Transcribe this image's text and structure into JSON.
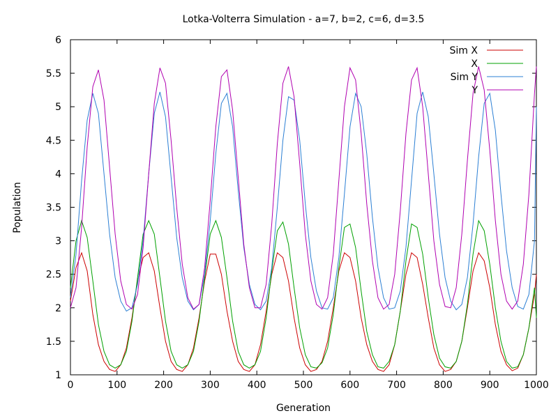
{
  "chart_data": {
    "type": "line",
    "title": "Lotka-Volterra Simulation - a=7, b=2, c=6, d=3.5",
    "xlabel": "Generation",
    "ylabel": "Population",
    "xlim": [
      0,
      1000
    ],
    "ylim": [
      1,
      6
    ],
    "x_ticks": [
      0,
      100,
      200,
      300,
      400,
      500,
      600,
      700,
      800,
      900,
      1000
    ],
    "x_tick_labels": [
      "0",
      "100",
      "200",
      "300",
      "400",
      "500",
      "600",
      "700",
      "800",
      "900",
      "1000"
    ],
    "y_ticks": [
      1,
      1.5,
      2,
      2.5,
      3,
      3.5,
      4,
      4.5,
      5,
      5.5,
      6
    ],
    "y_tick_labels": [
      "1",
      "1.5",
      "2",
      "2.5",
      "3",
      "3.5",
      "4",
      "4.5",
      "5",
      "5.5",
      "6"
    ],
    "grid": false,
    "legend_position": "top-right",
    "series": [
      {
        "name": "Sim X",
        "color": "#cc0000",
        "x": [
          0,
          12,
          24,
          36,
          48,
          60,
          72,
          84,
          96,
          108,
          120,
          132,
          144,
          156,
          168,
          180,
          192,
          204,
          216,
          228,
          240,
          252,
          264,
          276,
          288,
          300,
          312,
          324,
          336,
          348,
          360,
          372,
          384,
          396,
          408,
          420,
          432,
          444,
          456,
          468,
          480,
          492,
          504,
          516,
          528,
          540,
          552,
          564,
          576,
          588,
          600,
          612,
          624,
          636,
          648,
          660,
          672,
          684,
          696,
          708,
          720,
          732,
          744,
          756,
          768,
          780,
          792,
          804,
          816,
          828,
          840,
          852,
          864,
          876,
          888,
          900,
          912,
          924,
          936,
          948,
          960,
          972,
          984,
          996,
          1000
        ],
        "y": [
          2.1,
          2.6,
          2.82,
          2.55,
          1.9,
          1.45,
          1.2,
          1.08,
          1.05,
          1.15,
          1.4,
          1.85,
          2.4,
          2.75,
          2.82,
          2.55,
          2.0,
          1.5,
          1.2,
          1.08,
          1.05,
          1.15,
          1.4,
          1.85,
          2.4,
          2.8,
          2.8,
          2.5,
          1.95,
          1.5,
          1.2,
          1.08,
          1.05,
          1.15,
          1.45,
          1.95,
          2.5,
          2.82,
          2.75,
          2.4,
          1.85,
          1.4,
          1.15,
          1.05,
          1.08,
          1.2,
          1.5,
          2.0,
          2.55,
          2.82,
          2.75,
          2.4,
          1.85,
          1.45,
          1.2,
          1.08,
          1.05,
          1.15,
          1.45,
          1.95,
          2.5,
          2.82,
          2.75,
          2.35,
          1.85,
          1.4,
          1.15,
          1.05,
          1.08,
          1.2,
          1.5,
          2.0,
          2.55,
          2.82,
          2.7,
          2.3,
          1.75,
          1.35,
          1.15,
          1.06,
          1.1,
          1.3,
          1.7,
          2.2,
          2.5
        ]
      },
      {
        "name": "X",
        "color": "#00a000",
        "x": [
          0,
          12,
          24,
          36,
          48,
          60,
          72,
          84,
          96,
          108,
          120,
          132,
          144,
          156,
          168,
          180,
          192,
          204,
          216,
          228,
          240,
          252,
          264,
          276,
          288,
          300,
          312,
          324,
          336,
          348,
          360,
          372,
          384,
          396,
          408,
          420,
          432,
          444,
          456,
          468,
          480,
          492,
          504,
          516,
          528,
          540,
          552,
          564,
          576,
          588,
          600,
          612,
          624,
          636,
          648,
          660,
          672,
          684,
          696,
          708,
          720,
          732,
          744,
          756,
          768,
          780,
          792,
          804,
          816,
          828,
          840,
          852,
          864,
          876,
          888,
          900,
          912,
          924,
          936,
          948,
          960,
          972,
          984,
          996,
          1000
        ],
        "y": [
          2.3,
          3.0,
          3.3,
          3.05,
          2.4,
          1.75,
          1.35,
          1.15,
          1.1,
          1.15,
          1.35,
          1.8,
          2.45,
          3.1,
          3.3,
          3.1,
          2.45,
          1.8,
          1.35,
          1.15,
          1.1,
          1.15,
          1.35,
          1.8,
          2.45,
          3.1,
          3.3,
          3.05,
          2.45,
          1.8,
          1.35,
          1.15,
          1.1,
          1.15,
          1.35,
          1.85,
          2.55,
          3.15,
          3.28,
          2.95,
          2.3,
          1.7,
          1.3,
          1.12,
          1.1,
          1.18,
          1.4,
          1.9,
          2.6,
          3.2,
          3.25,
          2.9,
          2.25,
          1.65,
          1.3,
          1.12,
          1.1,
          1.2,
          1.45,
          1.95,
          2.7,
          3.25,
          3.2,
          2.8,
          2.15,
          1.6,
          1.25,
          1.12,
          1.1,
          1.2,
          1.5,
          2.05,
          2.8,
          3.3,
          3.15,
          2.65,
          2.0,
          1.5,
          1.2,
          1.1,
          1.12,
          1.3,
          1.7,
          2.3,
          1.85
        ]
      },
      {
        "name": "Sim Y",
        "color": "#2b7fd4",
        "x": [
          0,
          12,
          24,
          36,
          48,
          60,
          72,
          84,
          96,
          108,
          120,
          132,
          144,
          156,
          168,
          180,
          192,
          204,
          216,
          228,
          240,
          252,
          264,
          276,
          288,
          300,
          312,
          324,
          336,
          348,
          360,
          372,
          384,
          396,
          408,
          420,
          432,
          444,
          456,
          468,
          480,
          492,
          504,
          516,
          528,
          540,
          552,
          564,
          576,
          588,
          600,
          612,
          624,
          636,
          648,
          660,
          672,
          684,
          696,
          708,
          720,
          732,
          744,
          756,
          768,
          780,
          792,
          804,
          816,
          828,
          840,
          852,
          864,
          876,
          888,
          900,
          912,
          924,
          936,
          948,
          960,
          972,
          984,
          996,
          1000
        ],
        "y": [
          2.15,
          2.8,
          3.9,
          4.8,
          5.2,
          4.9,
          4.0,
          3.1,
          2.45,
          2.1,
          1.95,
          2.0,
          2.35,
          3.0,
          4.0,
          4.9,
          5.22,
          4.85,
          3.95,
          3.05,
          2.45,
          2.1,
          1.97,
          2.05,
          2.5,
          3.3,
          4.3,
          5.05,
          5.2,
          4.7,
          3.75,
          2.9,
          2.35,
          2.05,
          1.97,
          2.1,
          2.6,
          3.5,
          4.5,
          5.15,
          5.1,
          4.5,
          3.55,
          2.75,
          2.25,
          2.0,
          1.98,
          2.15,
          2.75,
          3.7,
          4.7,
          5.2,
          5.0,
          4.3,
          3.35,
          2.6,
          2.15,
          1.98,
          2.0,
          2.25,
          2.9,
          3.9,
          4.9,
          5.22,
          4.85,
          4.0,
          3.1,
          2.45,
          2.1,
          1.97,
          2.05,
          2.45,
          3.25,
          4.25,
          5.05,
          5.2,
          4.65,
          3.7,
          2.85,
          2.3,
          2.02,
          1.98,
          2.2,
          3.0,
          5.0
        ]
      },
      {
        "name": "Y",
        "color": "#b000b0",
        "x": [
          0,
          12,
          24,
          36,
          48,
          60,
          72,
          84,
          96,
          108,
          120,
          132,
          144,
          156,
          168,
          180,
          192,
          204,
          216,
          228,
          240,
          252,
          264,
          276,
          288,
          300,
          312,
          324,
          336,
          348,
          360,
          372,
          384,
          396,
          408,
          420,
          432,
          444,
          456,
          468,
          480,
          492,
          504,
          516,
          528,
          540,
          552,
          564,
          576,
          588,
          600,
          612,
          624,
          636,
          648,
          660,
          672,
          684,
          696,
          708,
          720,
          732,
          744,
          756,
          768,
          780,
          792,
          804,
          816,
          828,
          840,
          852,
          864,
          876,
          888,
          900,
          912,
          924,
          936,
          948,
          960,
          972,
          984,
          996,
          1000
        ],
        "y": [
          2.0,
          2.3,
          3.2,
          4.4,
          5.3,
          5.55,
          5.1,
          4.1,
          3.1,
          2.4,
          2.05,
          1.98,
          2.2,
          2.9,
          4.0,
          5.05,
          5.58,
          5.35,
          4.5,
          3.5,
          2.65,
          2.15,
          1.98,
          2.05,
          2.6,
          3.6,
          4.7,
          5.45,
          5.55,
          4.95,
          3.95,
          2.95,
          2.3,
          2.0,
          2.0,
          2.35,
          3.25,
          4.45,
          5.35,
          5.6,
          5.15,
          4.15,
          3.1,
          2.4,
          2.05,
          1.98,
          2.15,
          2.8,
          3.9,
          5.0,
          5.58,
          5.4,
          4.6,
          3.55,
          2.7,
          2.15,
          1.98,
          2.05,
          2.5,
          3.45,
          4.6,
          5.4,
          5.58,
          5.0,
          4.0,
          3.0,
          2.35,
          2.02,
          2.0,
          2.3,
          3.1,
          4.2,
          5.2,
          5.6,
          5.25,
          4.35,
          3.3,
          2.5,
          2.1,
          1.98,
          2.1,
          2.65,
          3.7,
          5.2,
          5.6
        ]
      }
    ]
  }
}
